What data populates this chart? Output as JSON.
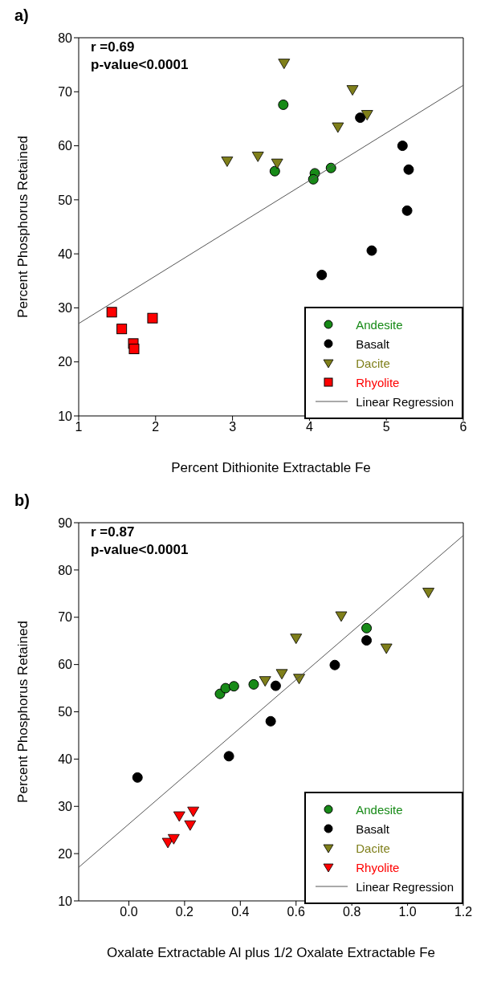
{
  "chart_data": [
    {
      "type": "scatter",
      "title": "a)",
      "xlabel": "Percent Dithionite Extractable Fe",
      "ylabel": "Percent Phosphorus Retained",
      "annotations": [
        "r =0.69",
        "p-value<0.0001"
      ],
      "xlim": [
        1,
        6
      ],
      "xticks": [
        1,
        2,
        3,
        4,
        5,
        6
      ],
      "ylim": [
        10,
        80
      ],
      "yticks": [
        10,
        20,
        30,
        40,
        50,
        60,
        70,
        80
      ],
      "legend": "bottom right",
      "grid": false,
      "series": [
        {
          "name": "Andesite",
          "color": "#178a17",
          "marker": "circle",
          "x": [
            3.66,
            3.55,
            4.07,
            4.05,
            4.28
          ],
          "values": [
            67.6,
            55.3,
            54.9,
            53.8,
            55.9
          ]
        },
        {
          "name": "Basalt",
          "color": "#000000",
          "marker": "circle",
          "x": [
            4.66,
            5.21,
            5.29,
            5.27,
            4.81,
            4.16
          ],
          "values": [
            65.2,
            60,
            55.6,
            48,
            40.6,
            36.1
          ]
        },
        {
          "name": "Dacite",
          "color": "#7f7f1a",
          "marker": "triangle",
          "x": [
            3.67,
            4.56,
            4.75,
            4.37,
            2.93,
            3.33,
            3.58
          ],
          "values": [
            75.3,
            70.4,
            65.8,
            63.5,
            57.2,
            58.1,
            56.8
          ]
        },
        {
          "name": "Rhyolite",
          "color": "#ff0000",
          "marker": "square",
          "x": [
            1.43,
            1.56,
            1.71,
            1.72,
            1.96
          ],
          "values": [
            29.2,
            26.1,
            23.4,
            22.4,
            28.1
          ]
        },
        {
          "name": "Linear Regression",
          "type": "line",
          "color": "#555555",
          "marker": "none",
          "x": [
            1,
            6
          ],
          "values": [
            27.1,
            71.2
          ]
        }
      ]
    },
    {
      "type": "scatter",
      "title": "b)",
      "xlabel": "Oxalate Extractable Al plus 1/2 Oxalate Extractable Fe",
      "ylabel": "Percent Phosphorus Retained",
      "annotations": [
        "r =0.87",
        "p-value<0.0001"
      ],
      "xlim": [
        -0.18,
        1.2
      ],
      "xticks": [
        {
          "value": 0,
          "label": "0.0"
        },
        {
          "value": 0.2,
          "label": "0.2"
        },
        {
          "value": 0.4,
          "label": "0.4"
        },
        {
          "value": 0.6,
          "label": "0.6"
        },
        {
          "value": 0.8,
          "label": "0.8"
        },
        {
          "value": 1,
          "label": "1.0"
        },
        {
          "value": 1.2,
          "label": "1.2"
        }
      ],
      "ylim": [
        10,
        90
      ],
      "yticks": [
        10,
        20,
        30,
        40,
        50,
        60,
        70,
        80,
        90
      ],
      "legend": "bottom right",
      "grid": false,
      "series": [
        {
          "name": "Andesite",
          "color": "#178a17",
          "marker": "circle",
          "x": [
            0.327,
            0.347,
            0.377,
            0.448,
            0.853
          ],
          "values": [
            53.8,
            55,
            55.4,
            55.8,
            67.7
          ]
        },
        {
          "name": "Basalt",
          "color": "#000000",
          "marker": "circle",
          "x": [
            0.527,
            0.739,
            0.853,
            0.509,
            0.359,
            0.031
          ],
          "values": [
            55.5,
            59.9,
            65.1,
            48,
            40.6,
            36.1
          ]
        },
        {
          "name": "Dacite",
          "color": "#7f7f1a",
          "marker": "triangle",
          "x": [
            0.489,
            0.549,
            0.611,
            0.6,
            0.762,
            0.924,
            1.075
          ],
          "values": [
            56.6,
            58.1,
            57.1,
            65.6,
            70.3,
            63.5,
            75.3
          ]
        },
        {
          "name": "Rhyolite",
          "color": "#ff0000",
          "marker": "triangle",
          "x": [
            0.14,
            0.161,
            0.181,
            0.22,
            0.231
          ],
          "values": [
            22.4,
            23.2,
            28,
            26.1,
            29
          ]
        },
        {
          "name": "Linear Regression",
          "type": "line",
          "color": "#555555",
          "marker": "none",
          "x": [
            -0.18,
            1.2
          ],
          "values": [
            17.1,
            87.3
          ]
        }
      ]
    }
  ]
}
